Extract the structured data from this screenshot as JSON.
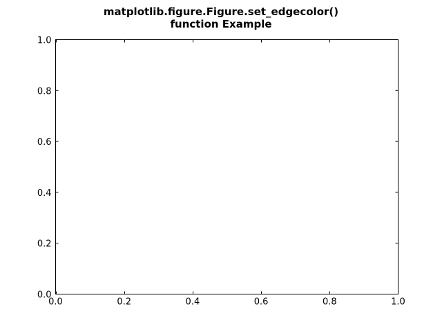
{
  "chart_data": {
    "type": "line",
    "title_lines": [
      "matplotlib.figure.Figure.set_edgecolor()",
      "function Example"
    ],
    "xlabel": "",
    "ylabel": "",
    "xlim": [
      0.0,
      1.0
    ],
    "ylim": [
      0.0,
      1.0
    ],
    "x_ticks": [
      0.0,
      0.2,
      0.4,
      0.6,
      0.8,
      1.0
    ],
    "y_ticks": [
      0.0,
      0.2,
      0.4,
      0.6,
      0.8,
      1.0
    ],
    "x_tick_labels": [
      "0.0",
      "0.2",
      "0.4",
      "0.6",
      "0.8",
      "1.0"
    ],
    "y_tick_labels": [
      "0.0",
      "0.2",
      "0.4",
      "0.6",
      "0.8",
      "1.0"
    ],
    "series": [],
    "grid": false,
    "colors": {
      "background": "#ffffff",
      "axes_face": "#ffffff",
      "axes_edge": "#000000",
      "text": "#000000"
    }
  }
}
